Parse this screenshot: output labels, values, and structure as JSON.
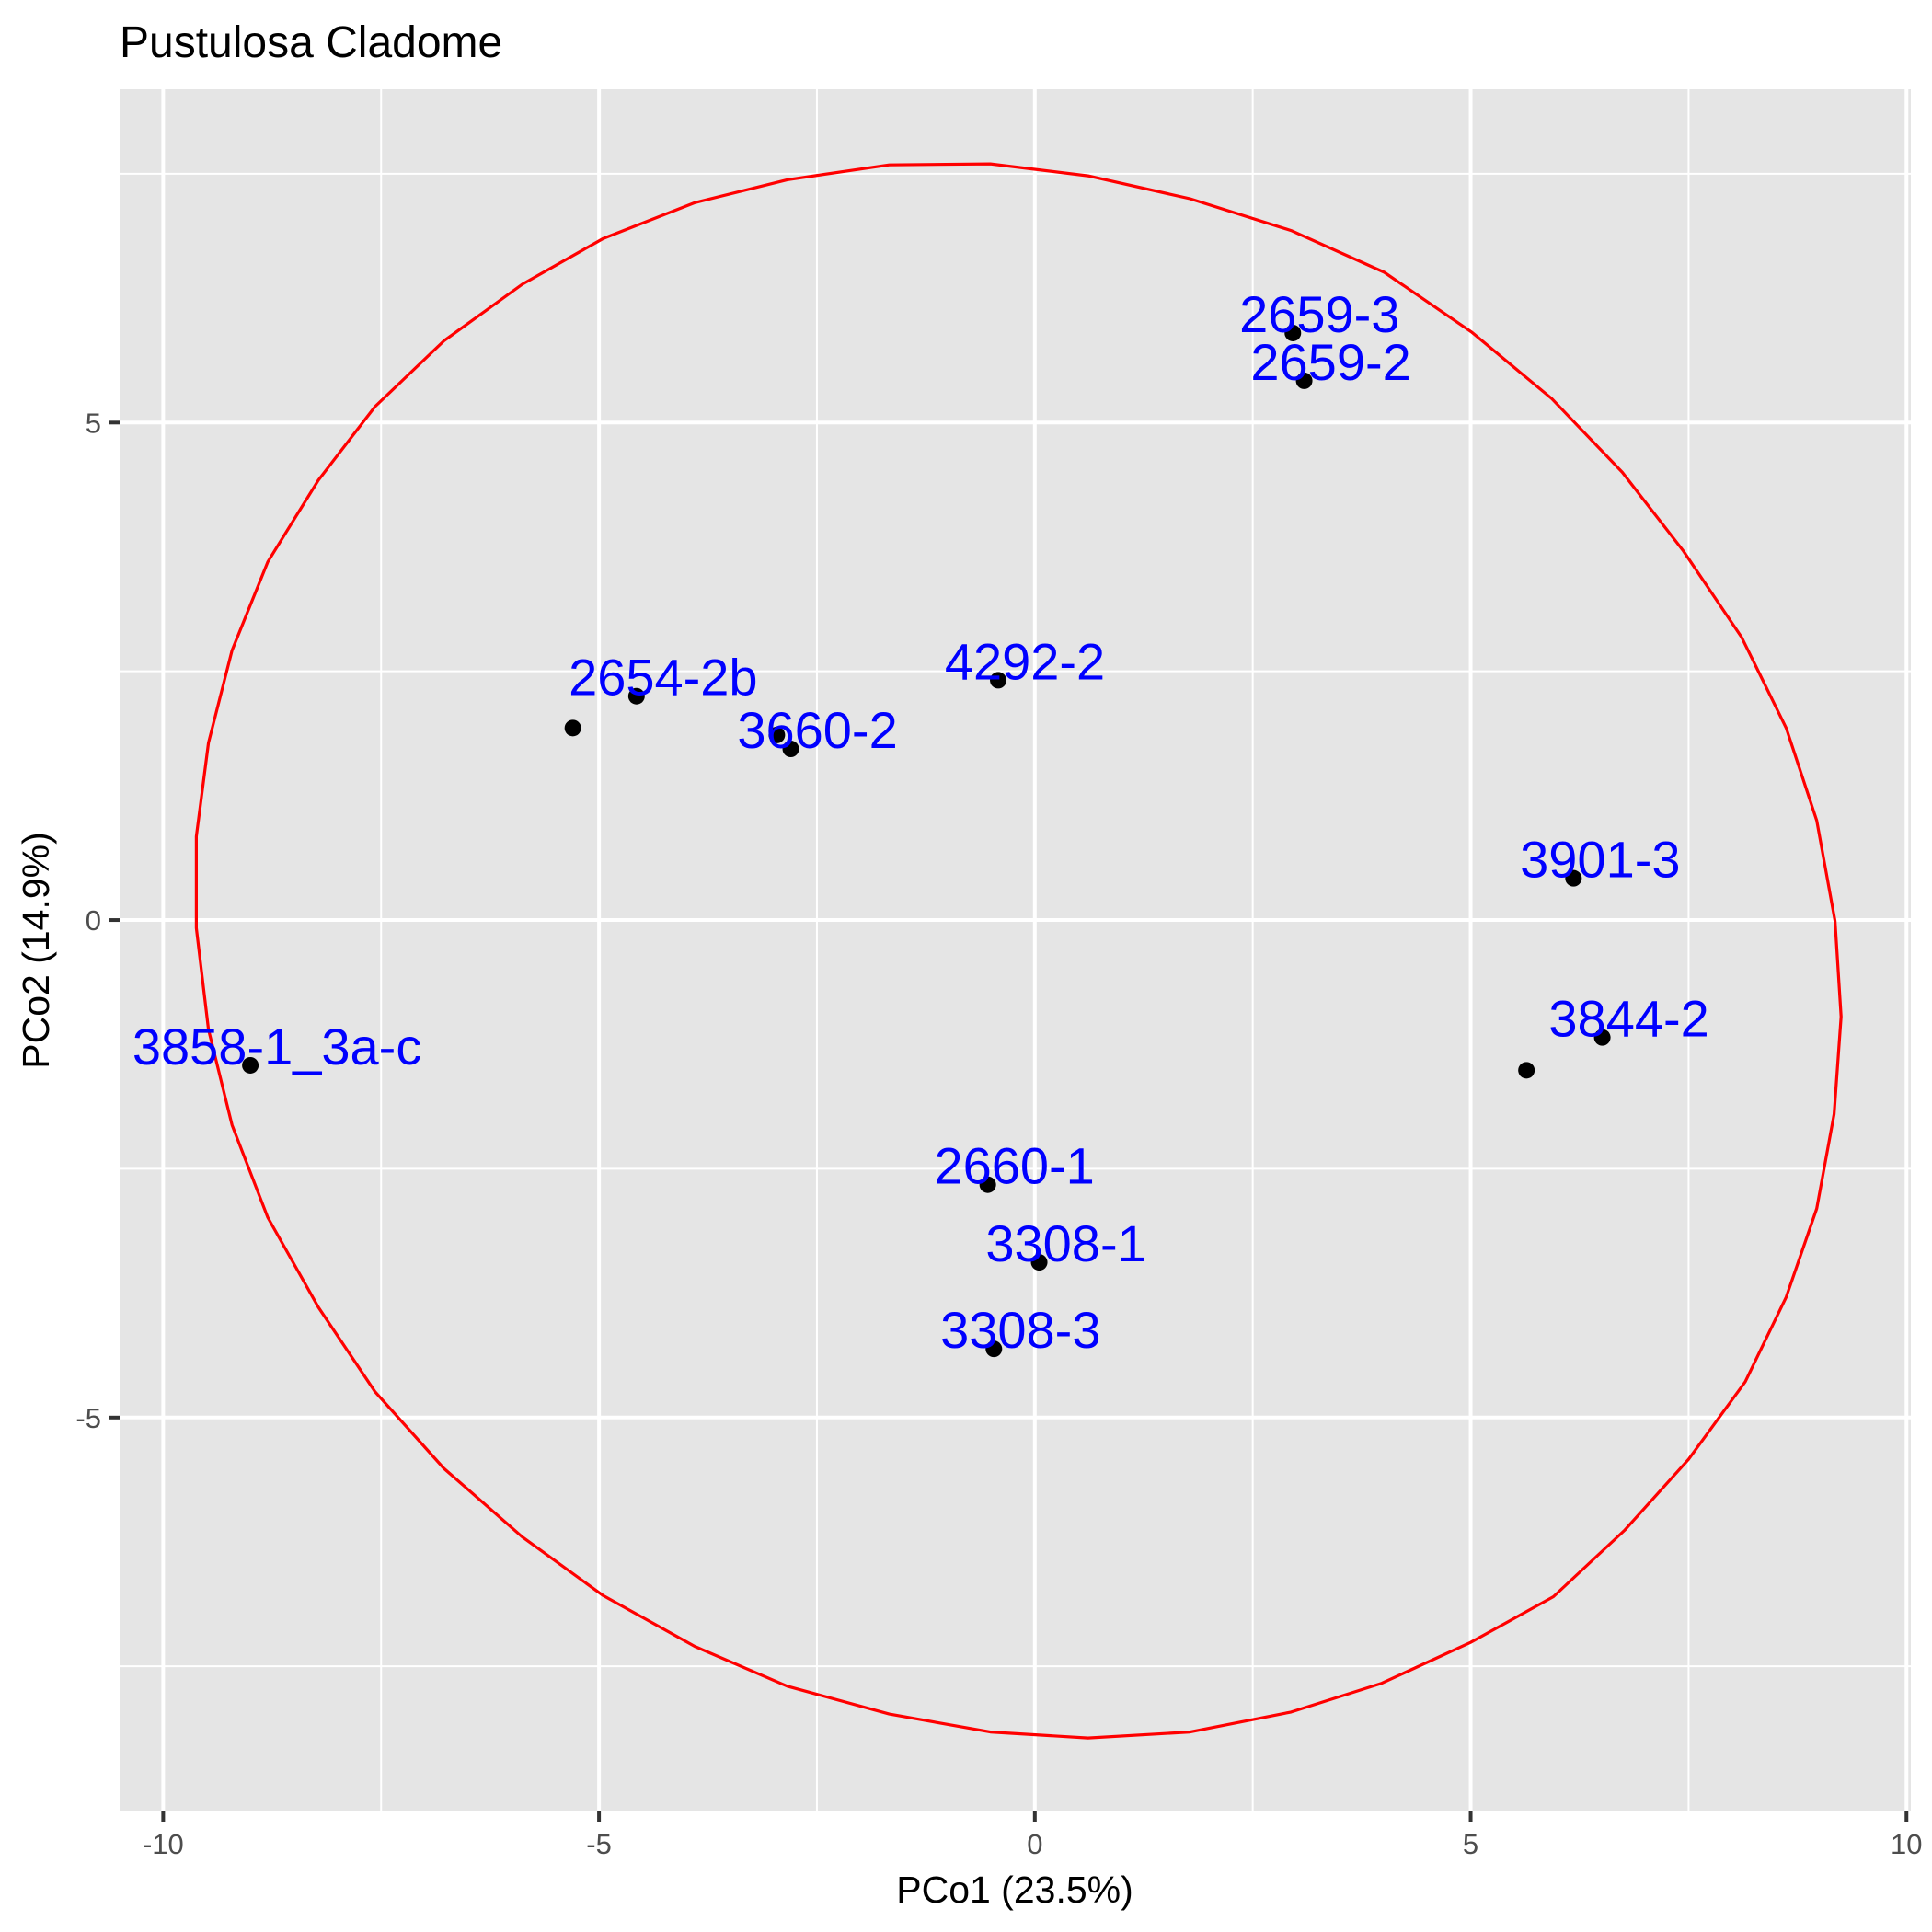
{
  "chart_data": {
    "type": "scatter",
    "title": "Pustulosa Cladome",
    "xlabel": "PCo1 (23.5%)",
    "ylabel": "PCo2 (14.9%)",
    "xlim": [
      -10.5,
      10.05
    ],
    "ylim": [
      -8.95,
      8.35
    ],
    "x_ticks": [
      -10,
      -5,
      0,
      5,
      10
    ],
    "x_tick_labels": [
      "-10",
      "-5",
      "0",
      "5",
      "10"
    ],
    "y_ticks": [
      -5,
      0,
      5
    ],
    "y_tick_labels": [
      "-5",
      "0",
      "5"
    ],
    "x_minor": [
      -7.5,
      -2.5,
      2.5,
      7.5
    ],
    "y_minor": [
      -7.5,
      -2.5,
      2.5,
      7.5
    ],
    "grid": true,
    "colors": {
      "panel": "#E5E5E5",
      "grid": "#FFFFFF",
      "point": "#000000",
      "label": "#0000FF",
      "ellipse": "#FF0000"
    },
    "points": [
      {
        "x": 2.96,
        "y": 5.9,
        "label": "2659-3"
      },
      {
        "x": 3.09,
        "y": 5.42,
        "label": "2659-2"
      },
      {
        "x": -5.3,
        "y": 1.93,
        "label": ""
      },
      {
        "x": -4.57,
        "y": 2.25,
        "label": "2654-2b"
      },
      {
        "x": -2.96,
        "y": 1.86,
        "label": ""
      },
      {
        "x": -2.8,
        "y": 1.72,
        "label": "3660-2"
      },
      {
        "x": -0.42,
        "y": 2.41,
        "label": "4292-2"
      },
      {
        "x": 6.18,
        "y": 0.42,
        "label": "3901-3"
      },
      {
        "x": 6.51,
        "y": -1.18,
        "label": "3844-2"
      },
      {
        "x": 5.64,
        "y": -1.51,
        "label": ""
      },
      {
        "x": -9.0,
        "y": -1.46,
        "label": "3858-1_3a-c"
      },
      {
        "x": -0.54,
        "y": -2.66,
        "label": "2660-1"
      },
      {
        "x": 0.05,
        "y": -3.44,
        "label": "3308-1"
      },
      {
        "x": -0.47,
        "y": -4.31,
        "label": "3308-3"
      }
    ],
    "ellipse": [
      [
        -0.51,
        7.6
      ],
      [
        0.61,
        7.48
      ],
      [
        1.78,
        7.25
      ],
      [
        2.94,
        6.93
      ],
      [
        4.01,
        6.51
      ],
      [
        5.01,
        5.91
      ],
      [
        5.93,
        5.24
      ],
      [
        6.74,
        4.5
      ],
      [
        7.44,
        3.71
      ],
      [
        8.11,
        2.84
      ],
      [
        8.62,
        1.93
      ],
      [
        8.97,
        1.0
      ],
      [
        9.18,
        -0.01
      ],
      [
        9.25,
        -0.97
      ],
      [
        9.17,
        -1.95
      ],
      [
        8.97,
        -2.9
      ],
      [
        8.62,
        -3.79
      ],
      [
        8.15,
        -4.64
      ],
      [
        7.5,
        -5.42
      ],
      [
        6.77,
        -6.13
      ],
      [
        5.95,
        -6.8
      ],
      [
        5.0,
        -7.26
      ],
      [
        3.98,
        -7.67
      ],
      [
        2.94,
        -7.96
      ],
      [
        1.78,
        -8.16
      ],
      [
        0.61,
        -8.22
      ],
      [
        -0.51,
        -8.16
      ],
      [
        -1.67,
        -7.98
      ],
      [
        -2.84,
        -7.7
      ],
      [
        -3.9,
        -7.3
      ],
      [
        -4.95,
        -6.79
      ],
      [
        -5.88,
        -6.2
      ],
      [
        -6.78,
        -5.51
      ],
      [
        -7.57,
        -4.74
      ],
      [
        -8.22,
        -3.89
      ],
      [
        -8.8,
        -2.99
      ],
      [
        -9.21,
        -2.06
      ],
      [
        -9.48,
        -1.1
      ],
      [
        -9.62,
        -0.08
      ],
      [
        -9.62,
        0.84
      ],
      [
        -9.48,
        1.78
      ],
      [
        -9.21,
        2.71
      ],
      [
        -8.8,
        3.6
      ],
      [
        -8.22,
        4.42
      ],
      [
        -7.57,
        5.16
      ],
      [
        -6.78,
        5.82
      ],
      [
        -5.88,
        6.39
      ],
      [
        -4.95,
        6.85
      ],
      [
        -3.9,
        7.21
      ],
      [
        -2.84,
        7.44
      ],
      [
        -1.67,
        7.59
      ]
    ]
  }
}
